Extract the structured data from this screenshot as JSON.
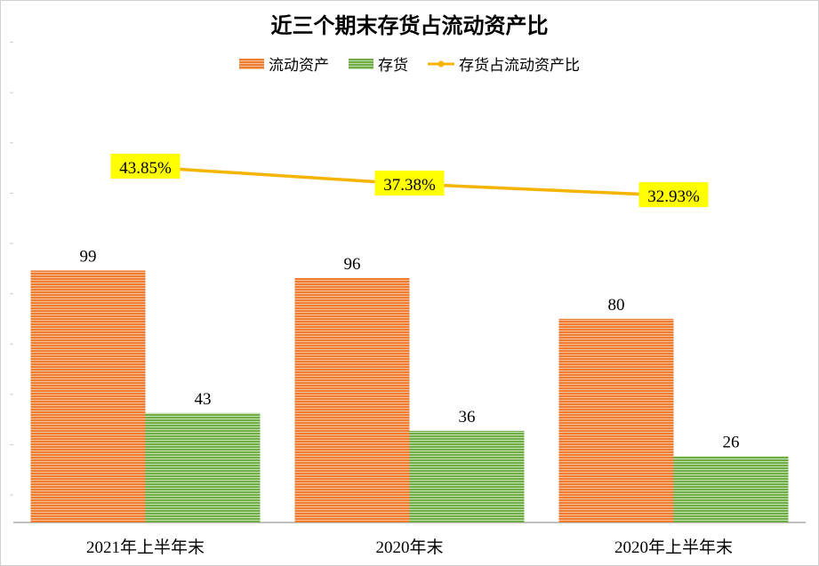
{
  "chart_data": {
    "type": "bar",
    "title": "近三个期末存货占流动资产比",
    "categories": [
      "2021年上半年末",
      "2020年末",
      "2020年上半年末"
    ],
    "series": [
      {
        "name": "流动资产",
        "type": "bar",
        "values": [
          99,
          96,
          80
        ],
        "color": "#ED7D31"
      },
      {
        "name": "存货",
        "type": "bar",
        "values": [
          43,
          36,
          26
        ],
        "color": "#70AD47"
      },
      {
        "name": "存货占流动资产比",
        "type": "line",
        "axis": "secondary",
        "values": [
          43.85,
          37.38,
          32.93
        ],
        "labels": [
          "43.85%",
          "37.38%",
          "32.93%"
        ],
        "color": "#F4B400",
        "label_bg": "#FFFF00"
      }
    ],
    "ylim": [
      0,
      170
    ],
    "legend": "top",
    "grid": false
  }
}
